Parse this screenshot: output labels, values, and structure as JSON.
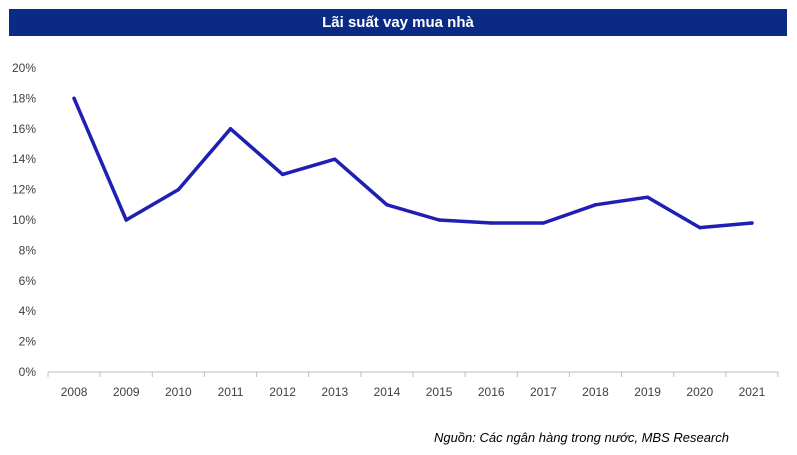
{
  "header": {
    "title": "Lãi suất vay mua nhà"
  },
  "footer": {
    "source": "Nguồn: Các ngân hàng trong nước, MBS Research"
  },
  "chart_data": {
    "type": "line",
    "title": "Lãi suất vay mua nhà",
    "categories": [
      "2008",
      "2009",
      "2010",
      "2011",
      "2012",
      "2013",
      "2014",
      "2015",
      "2016",
      "2017",
      "2018",
      "2019",
      "2020",
      "2021"
    ],
    "series": [
      {
        "values": [
          18,
          10,
          12,
          16,
          13,
          14,
          11,
          10,
          9.8,
          9.8,
          11,
          11.5,
          9.5,
          9.8
        ],
        "color": "#1f1fb4"
      }
    ],
    "ylim": [
      0,
      20
    ],
    "yticks": [
      0,
      2,
      4,
      6,
      8,
      10,
      12,
      14,
      16,
      18,
      20
    ],
    "ytick_labels": [
      "0%",
      "2%",
      "4%",
      "6%",
      "8%",
      "10%",
      "12%",
      "14%",
      "16%",
      "18%",
      "20%"
    ],
    "grid": false,
    "axis_color": "#bfbfbf",
    "legend": "none"
  }
}
